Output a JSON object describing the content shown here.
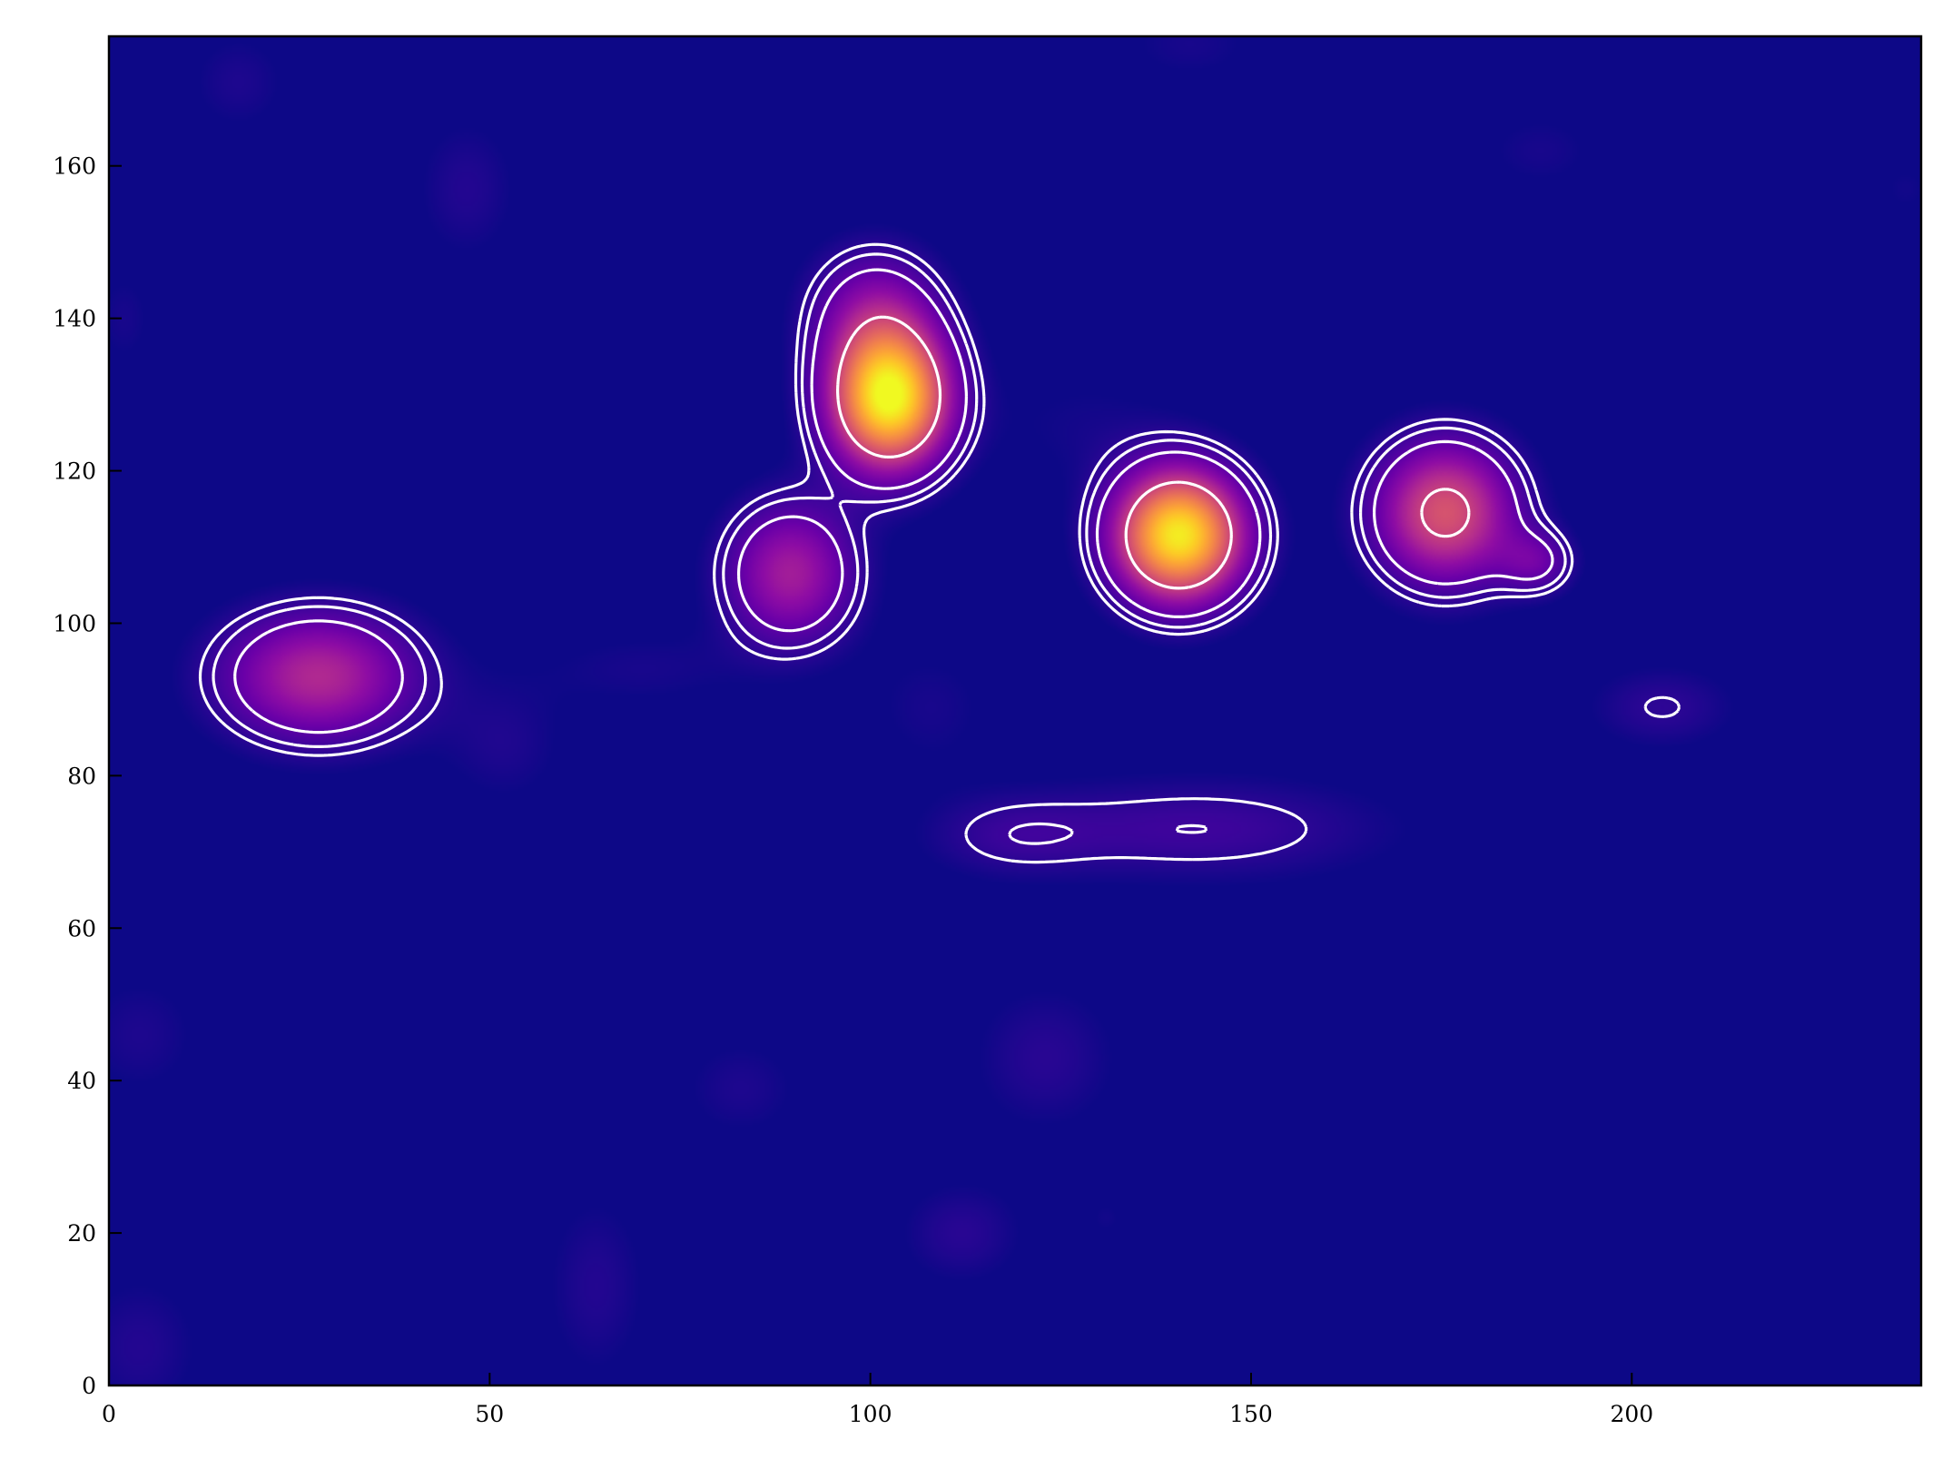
{
  "chart_data": {
    "type": "heatmap",
    "title": "",
    "xlabel": "",
    "ylabel": "",
    "xlim": [
      0,
      238
    ],
    "ylim": [
      0,
      177
    ],
    "x_ticks": [
      0,
      50,
      100,
      150,
      200
    ],
    "y_ticks": [
      0,
      20,
      40,
      60,
      80,
      100,
      120,
      140,
      160
    ],
    "x_tick_labels": [
      "0",
      "50",
      "100",
      "150",
      "200"
    ],
    "y_tick_labels": [
      "0",
      "20",
      "40",
      "60",
      "80",
      "100",
      "120",
      "140",
      "160"
    ],
    "colormap": "plasma",
    "background_color": "#0d0887",
    "contour_color": "#ffffff",
    "grid": false,
    "legend": "none",
    "sources": [
      {
        "x": 102.5,
        "y": 129.5,
        "peak": 1.0,
        "sx": 5.5,
        "sy": 6.5
      },
      {
        "x": 100.5,
        "y": 141.0,
        "peak": 0.25,
        "sx": 6.0,
        "sy": 6.0
      },
      {
        "x": 89.5,
        "y": 106.5,
        "peak": 0.38,
        "sx": 6.0,
        "sy": 6.5
      },
      {
        "x": 140.5,
        "y": 111.5,
        "peak": 0.97,
        "sx": 6.0,
        "sy": 6.0
      },
      {
        "x": 175.5,
        "y": 114.5,
        "peak": 0.56,
        "sx": 6.5,
        "sy": 6.5
      },
      {
        "x": 187.5,
        "y": 108.0,
        "peak": 0.2,
        "sx": 3.5,
        "sy": 3.0
      },
      {
        "x": 27.5,
        "y": 93.0,
        "peak": 0.42,
        "sx": 9.0,
        "sy": 6.0
      }
    ],
    "faint_features": [
      {
        "x": 143,
        "y": 73,
        "peak": 0.13,
        "sx": 18,
        "sy": 5
      },
      {
        "x": 118,
        "y": 72,
        "peak": 0.08,
        "sx": 8,
        "sy": 4
      },
      {
        "x": 204,
        "y": 89,
        "peak": 0.1,
        "sx": 7,
        "sy": 4
      },
      {
        "x": 52,
        "y": 84,
        "peak": 0.07,
        "sx": 6,
        "sy": 6
      },
      {
        "x": 70,
        "y": 94,
        "peak": 0.06,
        "sx": 10,
        "sy": 4
      },
      {
        "x": 108,
        "y": 89,
        "peak": 0.06,
        "sx": 6,
        "sy": 6
      },
      {
        "x": 47,
        "y": 157,
        "peak": 0.08,
        "sx": 5,
        "sy": 7
      },
      {
        "x": 17,
        "y": 171,
        "peak": 0.07,
        "sx": 5,
        "sy": 5
      },
      {
        "x": 142,
        "y": 176,
        "peak": 0.06,
        "sx": 7,
        "sy": 4
      },
      {
        "x": 188,
        "y": 162,
        "peak": 0.06,
        "sx": 6,
        "sy": 4
      },
      {
        "x": 2,
        "y": 140,
        "peak": 0.06,
        "sx": 3,
        "sy": 5
      },
      {
        "x": 4,
        "y": 46,
        "peak": 0.07,
        "sx": 6,
        "sy": 6
      },
      {
        "x": 83,
        "y": 39,
        "peak": 0.07,
        "sx": 6,
        "sy": 5
      },
      {
        "x": 123,
        "y": 43,
        "peak": 0.09,
        "sx": 7,
        "sy": 7
      },
      {
        "x": 64,
        "y": 13,
        "peak": 0.08,
        "sx": 5,
        "sy": 9
      },
      {
        "x": 112,
        "y": 20,
        "peak": 0.09,
        "sx": 6,
        "sy": 5
      },
      {
        "x": 131,
        "y": 22,
        "peak": 0.05,
        "sx": 2,
        "sy": 2
      },
      {
        "x": 4,
        "y": 5,
        "peak": 0.08,
        "sx": 6,
        "sy": 7
      },
      {
        "x": 236,
        "y": 157,
        "peak": 0.05,
        "sx": 3,
        "sy": 3
      },
      {
        "x": 128,
        "y": 126,
        "peak": 0.05,
        "sx": 9,
        "sy": 6
      }
    ],
    "contour_levels": [
      0.095,
      0.13,
      0.2,
      0.5
    ]
  }
}
